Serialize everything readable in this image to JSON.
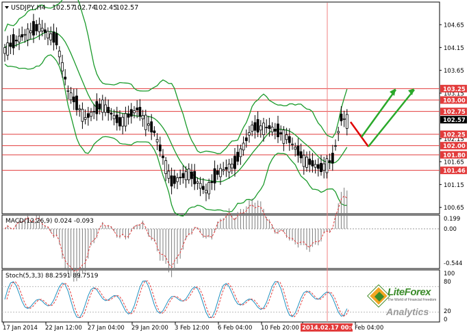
{
  "header": {
    "symbol_title": "USDJPY,H4",
    "ohlc": [
      "102.57",
      "102.74",
      "102.45",
      "102.57"
    ]
  },
  "main_chart": {
    "price_labels": [
      "104.65",
      "104.15",
      "103.65",
      "103.15",
      "102.15",
      "101.65",
      "101.15",
      "100.65"
    ],
    "level_lines": [
      {
        "price": 103.25,
        "label": "103.25"
      },
      {
        "price": 103.0,
        "label": "103.00"
      },
      {
        "price": 102.75,
        "label": "102.75"
      },
      {
        "price": 102.25,
        "label": "102.25"
      },
      {
        "price": 102.0,
        "label": "102.00"
      },
      {
        "price": 101.8,
        "label": "101.80"
      },
      {
        "price": 101.46,
        "label": "101.46"
      }
    ],
    "current_price_label": "102.57",
    "colors": {
      "level_line": "#e23b3b",
      "bollinger": "#1a9a2a",
      "candle": "#000000",
      "forecast_up": "#2aa82a",
      "forecast_down": "#e00000",
      "cursor_line": "#f08080"
    }
  },
  "macd_panel": {
    "title": "MACD(12,26,9) 0.024 -0.093",
    "scale_labels": [
      "0.199",
      "0.00",
      "-0.544"
    ]
  },
  "stoch_panel": {
    "title": "Stoch(5,3,3) 88.2591 89.7519",
    "scale_labels": [
      "100",
      "80",
      "20",
      "0"
    ]
  },
  "time_axis": {
    "labels": [
      "17 Jan 2014",
      "22 Jan 12:00",
      "27 Jan 04:00",
      "29 Jan 20:00",
      "3 Feb 12:00",
      "6 Feb 04:00",
      "10 Feb 20:00",
      "2014.02.17 00:00",
      "Feb 04:00"
    ]
  },
  "logo": {
    "brand": "LiteForex",
    "tagline": "The World of Financial Freedom",
    "sub": "Analytics"
  }
}
